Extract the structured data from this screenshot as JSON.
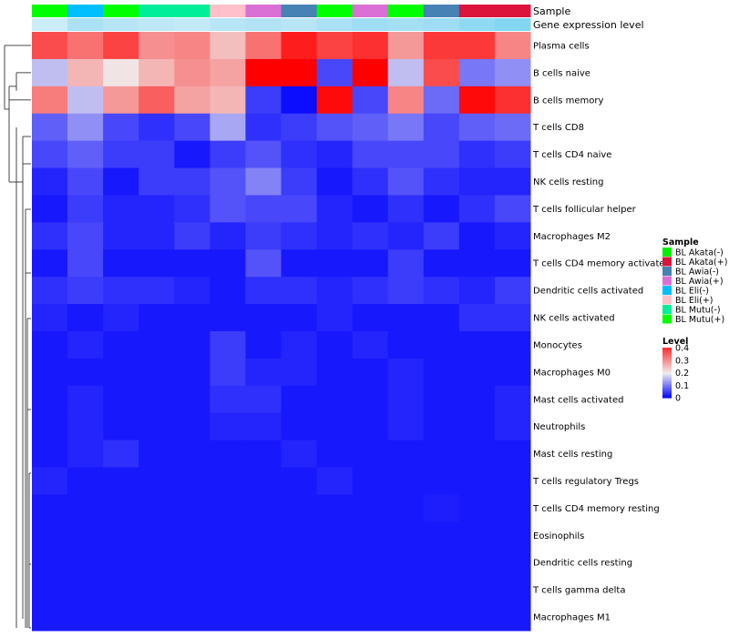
{
  "chart_data": {
    "type": "heatmap",
    "title": "",
    "annotation_labels": [
      "Sample",
      "Gene expression level"
    ],
    "columns": [
      {
        "sample": "BL Mutu(+)",
        "expr": 0.15
      },
      {
        "sample": "BL Eli(-)",
        "expr": 0.4
      },
      {
        "sample": "BL Mutu(+)",
        "expr": 0.3
      },
      {
        "sample": "BL Mutu(-)",
        "expr": 0.25
      },
      {
        "sample": "BL Mutu(-)",
        "expr": 0.22
      },
      {
        "sample": "BL Eli(+)",
        "expr": 0.3
      },
      {
        "sample": "BL Awia(+)",
        "expr": 0.35
      },
      {
        "sample": "BL Awia(-)",
        "expr": 0.3
      },
      {
        "sample": "BL Mutu(+)",
        "expr": 0.4
      },
      {
        "sample": "BL Awia(+)",
        "expr": 0.5
      },
      {
        "sample": "BL Mutu(+)",
        "expr": 0.45
      },
      {
        "sample": "BL Awia(-)",
        "expr": 0.5
      },
      {
        "sample": "BL Akata(+)",
        "expr": 0.6
      },
      {
        "sample": "BL Akata(+)",
        "expr": 0.7
      }
    ],
    "rows": [
      "Plasma cells",
      "B cells naive",
      "B cells memory",
      "T cells CD8",
      "T cells CD4 naive",
      "NK cells resting",
      "T cells follicular helper",
      "Macrophages M2",
      "T cells CD4 memory activated",
      "Dendritic cells activated",
      "NK cells activated",
      "Monocytes",
      "Macrophages M0",
      "Mast cells activated",
      "Neutrophils",
      "Mast cells resting",
      "T cells regulatory  Tregs",
      "T cells CD4 memory resting",
      "Eosinophils",
      "Dendritic cells resting",
      "T cells gamma delta",
      "Macrophages M1"
    ],
    "values": [
      [
        0.37,
        0.33,
        0.38,
        0.3,
        0.31,
        0.25,
        0.33,
        0.42,
        0.38,
        0.4,
        0.29,
        0.39,
        0.39,
        0.31
      ],
      [
        0.16,
        0.26,
        0.21,
        0.26,
        0.3,
        0.28,
        0.45,
        0.45,
        0.06,
        0.45,
        0.16,
        0.37,
        0.1,
        0.12
      ],
      [
        0.32,
        0.16,
        0.29,
        0.35,
        0.28,
        0.26,
        0.05,
        0.01,
        0.44,
        0.06,
        0.31,
        0.09,
        0.44,
        0.4
      ],
      [
        0.08,
        0.12,
        0.06,
        0.04,
        0.06,
        0.14,
        0.04,
        0.05,
        0.07,
        0.08,
        0.1,
        0.06,
        0.08,
        0.09
      ],
      [
        0.06,
        0.08,
        0.05,
        0.05,
        0.02,
        0.05,
        0.07,
        0.04,
        0.03,
        0.06,
        0.06,
        0.06,
        0.04,
        0.05
      ],
      [
        0.03,
        0.06,
        0.02,
        0.05,
        0.05,
        0.07,
        0.11,
        0.05,
        0.02,
        0.04,
        0.07,
        0.04,
        0.03,
        0.03
      ],
      [
        0.02,
        0.05,
        0.03,
        0.03,
        0.04,
        0.07,
        0.06,
        0.06,
        0.03,
        0.02,
        0.04,
        0.02,
        0.04,
        0.06
      ],
      [
        0.04,
        0.06,
        0.03,
        0.03,
        0.05,
        0.03,
        0.05,
        0.04,
        0.03,
        0.04,
        0.03,
        0.05,
        0.02,
        0.03
      ],
      [
        0.02,
        0.06,
        0.02,
        0.02,
        0.02,
        0.02,
        0.07,
        0.02,
        0.02,
        0.02,
        0.05,
        0.02,
        0.02,
        0.02
      ],
      [
        0.04,
        0.05,
        0.04,
        0.04,
        0.03,
        0.02,
        0.04,
        0.04,
        0.03,
        0.04,
        0.05,
        0.04,
        0.03,
        0.05
      ],
      [
        0.03,
        0.02,
        0.03,
        0.02,
        0.02,
        0.02,
        0.02,
        0.02,
        0.03,
        0.02,
        0.02,
        0.02,
        0.04,
        0.04
      ],
      [
        0.02,
        0.03,
        0.02,
        0.02,
        0.02,
        0.05,
        0.02,
        0.03,
        0.02,
        0.03,
        0.02,
        0.02,
        0.02,
        0.02
      ],
      [
        0.02,
        0.02,
        0.02,
        0.02,
        0.02,
        0.05,
        0.03,
        0.03,
        0.02,
        0.02,
        0.03,
        0.02,
        0.02,
        0.02
      ],
      [
        0.02,
        0.03,
        0.02,
        0.02,
        0.02,
        0.04,
        0.04,
        0.02,
        0.02,
        0.02,
        0.03,
        0.02,
        0.02,
        0.03
      ],
      [
        0.02,
        0.03,
        0.02,
        0.02,
        0.02,
        0.03,
        0.03,
        0.02,
        0.02,
        0.02,
        0.03,
        0.02,
        0.02,
        0.03
      ],
      [
        0.02,
        0.03,
        0.04,
        0.02,
        0.02,
        0.02,
        0.02,
        0.03,
        0.02,
        0.02,
        0.02,
        0.02,
        0.02,
        0.02
      ],
      [
        0.03,
        0.02,
        0.02,
        0.02,
        0.02,
        0.02,
        0.02,
        0.02,
        0.03,
        0.02,
        0.02,
        0.02,
        0.02,
        0.02
      ],
      [
        0.02,
        0.02,
        0.02,
        0.02,
        0.02,
        0.02,
        0.02,
        0.02,
        0.02,
        0.02,
        0.02,
        0.025,
        0.02,
        0.02
      ],
      [
        0.02,
        0.02,
        0.02,
        0.02,
        0.02,
        0.02,
        0.02,
        0.02,
        0.02,
        0.02,
        0.02,
        0.02,
        0.02,
        0.02
      ],
      [
        0.02,
        0.02,
        0.02,
        0.02,
        0.02,
        0.02,
        0.02,
        0.02,
        0.02,
        0.02,
        0.02,
        0.02,
        0.02,
        0.02
      ],
      [
        0.02,
        0.02,
        0.02,
        0.02,
        0.02,
        0.02,
        0.02,
        0.02,
        0.02,
        0.02,
        0.02,
        0.02,
        0.02,
        0.02
      ],
      [
        0.02,
        0.02,
        0.02,
        0.02,
        0.02,
        0.02,
        0.02,
        0.02,
        0.02,
        0.02,
        0.02,
        0.02,
        0.02,
        0.02
      ]
    ],
    "color_scale": {
      "stops": [
        {
          "value": 0.0,
          "color": "#0000ff"
        },
        {
          "value": 0.2,
          "color": "#f0eeee"
        },
        {
          "value": 0.45,
          "color": "#ff0000"
        }
      ]
    },
    "legend_sample": {
      "title": "Sample",
      "items": [
        {
          "label": "BL Akata(-)",
          "color": "#00ee00"
        },
        {
          "label": "BL Akata(+)",
          "color": "#dc143c"
        },
        {
          "label": "BL Awia(-)",
          "color": "#4682b4"
        },
        {
          "label": "BL Awia(+)",
          "color": "#da70d6"
        },
        {
          "label": "BL Eli(-)",
          "color": "#00bfff"
        },
        {
          "label": "BL Eli(+)",
          "color": "#ffc0cb"
        },
        {
          "label": "BL Mutu(-)",
          "color": "#00ee99"
        },
        {
          "label": "BL Mutu(+)",
          "color": "#00ff00"
        }
      ]
    },
    "legend_level": {
      "title": "Level",
      "ticks": [
        "0.4",
        "0.3",
        "0.2",
        "0.1",
        "0"
      ],
      "tick_values": [
        0.4,
        0.3,
        0.2,
        0.1,
        0.0
      ]
    },
    "expr_colors": {
      "low": "#e0f2fa",
      "high": "#5bc8ec"
    },
    "row_dendrogram": true,
    "legend_position": "right"
  }
}
